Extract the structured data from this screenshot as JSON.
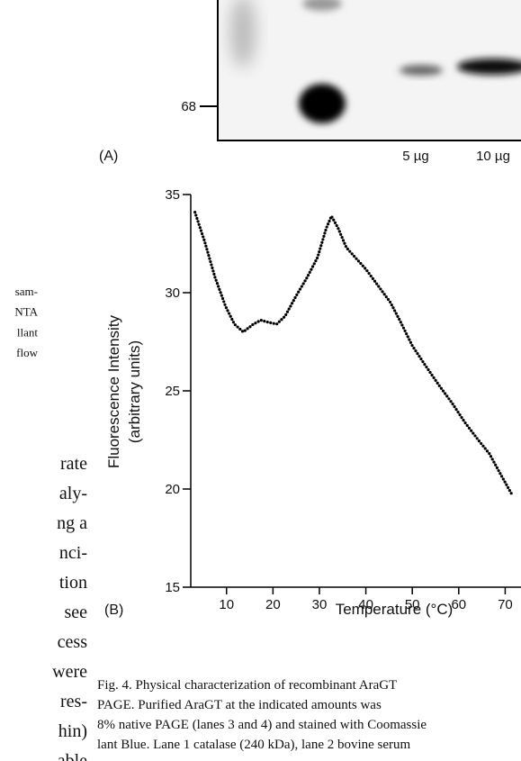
{
  "left_column": {
    "small_lines": [
      "sam-",
      "NTA",
      "llant",
      "flow"
    ],
    "lines": [
      "rate",
      "aly-",
      "ng a",
      "nci-",
      "tion",
      "see",
      "cess",
      "were",
      "res-",
      "hin)",
      "able"
    ]
  },
  "gel": {
    "marker": "68",
    "panel_label": "(A)",
    "lanes": [
      "5 µg",
      "10 µg"
    ]
  },
  "chart_data": {
    "type": "line",
    "panel_label": "(B)",
    "xlabel": "Temperature (°C)",
    "ylabel": [
      "Fluorescence Intensity",
      "(arbitrary units)"
    ],
    "x": [
      3.2,
      5.3,
      7.5,
      9.8,
      11.7,
      13.6,
      15.8,
      17.4,
      18.9,
      20.8,
      22.6,
      24.9,
      27.4,
      29.6,
      31.5,
      32.6,
      34.0,
      35.8,
      37.7,
      40.0,
      42.5,
      45.3,
      47.5,
      50.0,
      52.8,
      55.7,
      58.5,
      61.3,
      64.2,
      66.6,
      68.9,
      71.5
    ],
    "series": [
      {
        "name": "Fluorescence",
        "color": "#000000",
        "values": [
          34.1,
          32.6,
          30.8,
          29.3,
          28.4,
          28.0,
          28.4,
          28.6,
          28.5,
          28.4,
          28.8,
          29.8,
          30.8,
          31.8,
          33.3,
          33.9,
          33.3,
          32.3,
          31.8,
          31.2,
          30.4,
          29.5,
          28.5,
          27.3,
          26.3,
          25.3,
          24.4,
          23.4,
          22.5,
          21.8,
          20.8,
          19.7
        ]
      }
    ],
    "xlim": [
      2.3,
      73.6
    ],
    "xticks": [
      10,
      20,
      30,
      40,
      50,
      60,
      70
    ],
    "ylim": [
      15,
      35
    ],
    "yticks": [
      15,
      20,
      25,
      30,
      35
    ]
  },
  "caption": {
    "lines": [
      "Fig. 4.  Physical characterization of recombinant AraGT",
      "PAGE. Purified AraGT at the indicated amounts was",
      "8% native PAGE (lanes 3 and 4) and stained with Coomassie",
      "lant Blue. Lane 1 catalase (240 kDa), lane 2 bovine serum"
    ]
  }
}
